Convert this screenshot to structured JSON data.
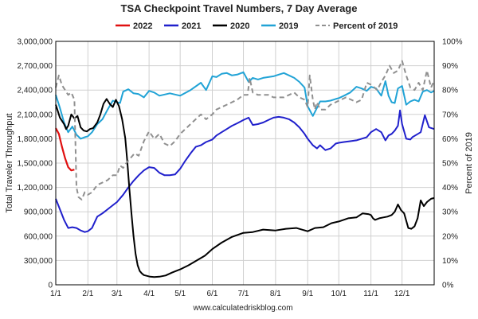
{
  "chart_data": {
    "type": "line",
    "title": "TSA Checkpoint Travel Numbers, 7 Day Average",
    "ylabel": "Total Traveler Throughput",
    "y2label": "Percent of 2019",
    "footer": "www.calculatedriskblog.com",
    "xlabel": "",
    "x_tick_labels": [
      "1/1",
      "2/1",
      "3/1",
      "4/1",
      "5/1",
      "6/1",
      "7/1",
      "8/1",
      "9/1",
      "10/1",
      "11/1",
      "12/1"
    ],
    "x_tick_days": [
      0,
      31,
      59,
      90,
      120,
      151,
      181,
      212,
      243,
      273,
      304,
      334
    ],
    "x_range": [
      0,
      365
    ],
    "ylim": [
      0,
      3000000
    ],
    "y_ticks": [
      0,
      300000,
      600000,
      900000,
      1200000,
      1500000,
      1800000,
      2100000,
      2400000,
      2700000,
      3000000
    ],
    "y_tick_labels": [
      "0",
      "300,000",
      "600,000",
      "900,000",
      "1,200,000",
      "1,500,000",
      "1,800,000",
      "2,100,000",
      "2,400,000",
      "2,700,000",
      "3,000,000"
    ],
    "y2lim": [
      0,
      100
    ],
    "y2_ticks": [
      0,
      10,
      20,
      30,
      40,
      50,
      60,
      70,
      80,
      90,
      100
    ],
    "y2_tick_labels": [
      "0%",
      "10%",
      "20%",
      "30%",
      "40%",
      "50%",
      "60%",
      "70%",
      "80%",
      "90%",
      "100%"
    ],
    "grid": true,
    "legend_position": "top",
    "series": [
      {
        "name": "2022",
        "color": "#e01010",
        "axis": "left",
        "width": 2.2,
        "dash": "",
        "x": [
          0,
          3,
          6,
          9,
          12,
          15,
          18
        ],
        "y": [
          1930000,
          1860000,
          1700000,
          1560000,
          1450000,
          1410000,
          1420000
        ]
      },
      {
        "name": "2021",
        "color": "#2020cc",
        "axis": "left",
        "width": 2,
        "dash": "",
        "x": [
          0,
          4,
          8,
          12,
          16,
          20,
          24,
          28,
          31,
          35,
          40,
          45,
          50,
          55,
          59,
          65,
          70,
          75,
          80,
          85,
          90,
          95,
          100,
          105,
          110,
          115,
          120,
          125,
          130,
          135,
          140,
          145,
          151,
          155,
          160,
          165,
          170,
          175,
          181,
          186,
          190,
          195,
          200,
          205,
          210,
          215,
          220,
          225,
          230,
          235,
          240,
          243,
          248,
          252,
          255,
          260,
          265,
          270,
          273,
          278,
          284,
          290,
          295,
          300,
          304,
          309,
          314,
          318,
          321,
          324,
          327,
          330,
          332,
          334,
          338,
          342,
          344,
          348,
          352,
          356,
          360,
          365
        ],
        "y": [
          1060000,
          930000,
          800000,
          700000,
          710000,
          700000,
          670000,
          650000,
          660000,
          700000,
          840000,
          880000,
          930000,
          980000,
          1020000,
          1110000,
          1200000,
          1280000,
          1350000,
          1410000,
          1450000,
          1440000,
          1380000,
          1350000,
          1350000,
          1360000,
          1430000,
          1530000,
          1620000,
          1700000,
          1720000,
          1760000,
          1790000,
          1840000,
          1880000,
          1920000,
          1960000,
          1990000,
          2030000,
          2060000,
          1970000,
          1980000,
          2000000,
          2030000,
          2060000,
          2070000,
          2060000,
          2040000,
          2000000,
          1940000,
          1860000,
          1800000,
          1720000,
          1680000,
          1720000,
          1660000,
          1680000,
          1740000,
          1750000,
          1760000,
          1770000,
          1780000,
          1800000,
          1820000,
          1880000,
          1920000,
          1880000,
          1780000,
          1840000,
          1860000,
          1900000,
          1960000,
          2150000,
          1980000,
          1800000,
          1790000,
          1820000,
          1850000,
          1880000,
          2090000,
          1940000,
          1920000
        ]
      },
      {
        "name": "2020",
        "color": "#000000",
        "axis": "left",
        "width": 2,
        "dash": "",
        "x": [
          0,
          4,
          8,
          10,
          12,
          15,
          18,
          21,
          24,
          27,
          30,
          33,
          36,
          40,
          43,
          46,
          49,
          52,
          55,
          58,
          61,
          64,
          67,
          69,
          71,
          73,
          75,
          77,
          79,
          81,
          83,
          85,
          88,
          91,
          95,
          100,
          106,
          112,
          120,
          128,
          136,
          144,
          151,
          160,
          170,
          181,
          190,
          200,
          212,
          222,
          232,
          243,
          250,
          258,
          266,
          273,
          282,
          290,
          296,
          302,
          304,
          306,
          308,
          312,
          316,
          320,
          324,
          327,
          330,
          333,
          336,
          340,
          343,
          346,
          349,
          352,
          355,
          358,
          362,
          365
        ],
        "y": [
          2220000,
          2060000,
          1980000,
          1920000,
          1960000,
          2100000,
          2050000,
          2080000,
          1940000,
          1900000,
          1890000,
          1920000,
          1930000,
          2000000,
          2100000,
          2230000,
          2290000,
          2230000,
          2190000,
          2280000,
          2200000,
          2040000,
          1810000,
          1520000,
          1180000,
          880000,
          600000,
          380000,
          240000,
          170000,
          140000,
          120000,
          110000,
          100000,
          95000,
          100000,
          115000,
          150000,
          190000,
          240000,
          300000,
          360000,
          440000,
          520000,
          590000,
          640000,
          650000,
          680000,
          670000,
          690000,
          700000,
          660000,
          700000,
          710000,
          760000,
          780000,
          820000,
          830000,
          880000,
          870000,
          860000,
          820000,
          800000,
          820000,
          830000,
          840000,
          860000,
          900000,
          990000,
          920000,
          880000,
          700000,
          690000,
          720000,
          820000,
          1040000,
          970000,
          1020000,
          1060000,
          1070000
        ]
      },
      {
        "name": "2019",
        "color": "#21a3d6",
        "axis": "left",
        "width": 2,
        "dash": "",
        "x": [
          0,
          4,
          8,
          12,
          16,
          20,
          24,
          28,
          31,
          35,
          40,
          45,
          50,
          55,
          59,
          62,
          65,
          70,
          75,
          80,
          85,
          90,
          95,
          100,
          110,
          120,
          130,
          140,
          145,
          151,
          155,
          160,
          165,
          170,
          175,
          181,
          186,
          190,
          195,
          200,
          205,
          210,
          215,
          220,
          225,
          230,
          235,
          240,
          243,
          248,
          252,
          255,
          260,
          265,
          270,
          273,
          278,
          284,
          290,
          295,
          300,
          304,
          309,
          314,
          318,
          321,
          324,
          327,
          330,
          334,
          338,
          342,
          346,
          350,
          354,
          358,
          362,
          365
        ],
        "y": [
          2340000,
          2180000,
          2000000,
          1880000,
          1950000,
          1850000,
          1800000,
          1820000,
          1830000,
          1880000,
          1980000,
          2040000,
          2160000,
          2270000,
          2250000,
          2240000,
          2380000,
          2410000,
          2360000,
          2350000,
          2310000,
          2390000,
          2370000,
          2330000,
          2360000,
          2330000,
          2400000,
          2490000,
          2400000,
          2570000,
          2560000,
          2600000,
          2610000,
          2580000,
          2590000,
          2620000,
          2500000,
          2550000,
          2530000,
          2550000,
          2560000,
          2570000,
          2590000,
          2610000,
          2580000,
          2550000,
          2500000,
          2430000,
          2200000,
          2080000,
          2180000,
          2260000,
          2260000,
          2270000,
          2290000,
          2300000,
          2330000,
          2370000,
          2440000,
          2420000,
          2390000,
          2440000,
          2420000,
          2330000,
          2510000,
          2330000,
          2250000,
          2240000,
          2420000,
          2450000,
          2220000,
          2260000,
          2280000,
          2260000,
          2380000,
          2400000,
          2370000,
          2390000
        ]
      },
      {
        "name": "Percent of 2019",
        "color": "#909090",
        "axis": "right",
        "width": 2,
        "dash": "6,4",
        "x": [
          0,
          3,
          6,
          9,
          12,
          15,
          18,
          20,
          22,
          25,
          28,
          31,
          35,
          40,
          45,
          50,
          55,
          59,
          62,
          65,
          68,
          72,
          76,
          80,
          85,
          90,
          95,
          100,
          105,
          110,
          115,
          120,
          125,
          130,
          135,
          140,
          145,
          151,
          155,
          160,
          165,
          170,
          175,
          181,
          185,
          187,
          190,
          195,
          200,
          205,
          210,
          215,
          220,
          225,
          230,
          235,
          240,
          243,
          245,
          248,
          250,
          252,
          255,
          260,
          265,
          270,
          275,
          280,
          285,
          290,
          295,
          300,
          305,
          310,
          315,
          318,
          322,
          326,
          330,
          334,
          338,
          342,
          346,
          350,
          354,
          358,
          362,
          365
        ],
        "y": [
          81,
          86,
          82,
          80,
          78,
          79,
          76,
          40,
          36,
          35,
          38,
          37,
          38,
          41,
          42,
          43,
          45,
          45,
          49,
          48,
          50,
          52,
          54,
          53,
          59,
          63,
          60,
          62,
          58,
          57,
          59,
          62,
          64,
          66,
          68,
          70,
          68,
          70,
          72,
          73,
          74,
          75,
          76,
          78,
          78,
          85,
          79,
          78,
          78,
          78,
          77,
          77,
          77,
          78,
          79,
          77,
          76,
          73,
          86,
          76,
          72,
          75,
          72,
          72,
          74,
          75,
          76,
          77,
          76,
          75,
          76,
          83,
          82,
          80,
          84,
          86,
          90,
          87,
          88,
          92,
          86,
          81,
          80,
          83,
          80,
          88,
          81,
          84
        ]
      }
    ]
  }
}
